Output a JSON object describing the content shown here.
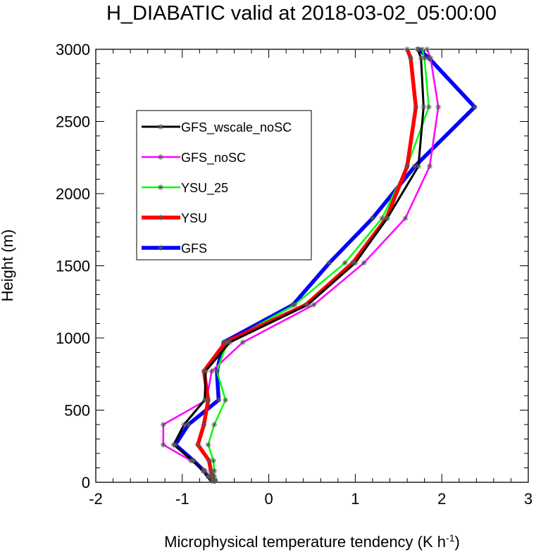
{
  "chart_data": {
    "type": "line",
    "title": "H_DIABATIC valid at 2018-03-02_05:00:00",
    "xlabel": "Microphysical temperature tendency (K h",
    "xlabel_superscript": "-1",
    "xlabel_suffix": ")",
    "ylabel": "Height (m)",
    "xlim": [
      -2,
      3
    ],
    "ylim": [
      0,
      3000
    ],
    "x_ticks": [
      -2,
      -1,
      0,
      1,
      2,
      3
    ],
    "y_ticks": [
      0,
      500,
      1000,
      1500,
      2000,
      2500,
      3000
    ],
    "x_tick_labels": [
      "-2",
      "-1",
      "0",
      "1",
      "2",
      "3"
    ],
    "y_tick_labels": [
      "0",
      "500",
      "1000",
      "1500",
      "2000",
      "2500",
      "3000"
    ],
    "grid": false,
    "legend_position": "upper-left",
    "series": [
      {
        "name": "GFS_wscale_noSC",
        "color": "#000000",
        "heights": [
          10,
          40,
          80,
          150,
          260,
          400,
          570,
          770,
          970,
          1230,
          1520,
          1830,
          2190,
          2600,
          2940,
          3000
        ],
        "values": [
          -0.66,
          -0.7,
          -0.76,
          -0.88,
          -1.1,
          -0.98,
          -0.74,
          -0.73,
          -0.45,
          0.45,
          1.0,
          1.37,
          1.73,
          1.79,
          1.76,
          1.72
        ]
      },
      {
        "name": "GFS_noSC",
        "color": "#ff00ff",
        "heights": [
          10,
          40,
          80,
          150,
          260,
          400,
          570,
          770,
          970,
          1230,
          1520,
          1830,
          2190,
          2600,
          2940,
          3000
        ],
        "values": [
          -0.62,
          -0.67,
          -0.74,
          -0.9,
          -1.22,
          -1.22,
          -0.72,
          -0.66,
          -0.3,
          0.52,
          1.1,
          1.58,
          1.86,
          1.96,
          1.87,
          1.83
        ]
      },
      {
        "name": "YSU_25",
        "color": "#00ff00",
        "heights": [
          10,
          40,
          80,
          150,
          260,
          400,
          570,
          770,
          970,
          1230,
          1520,
          1830,
          2190,
          2600,
          2940,
          3000
        ],
        "values": [
          -0.63,
          -0.63,
          -0.63,
          -0.64,
          -0.7,
          -0.63,
          -0.5,
          -0.6,
          -0.48,
          0.3,
          0.88,
          1.31,
          1.6,
          1.85,
          1.8,
          1.77
        ]
      },
      {
        "name": "YSU",
        "color": "#ff0000",
        "heights": [
          10,
          40,
          80,
          150,
          260,
          400,
          570,
          770,
          970,
          1230,
          1520,
          1830,
          2190,
          2600,
          2940,
          3000
        ],
        "values": [
          -0.64,
          -0.65,
          -0.67,
          -0.69,
          -0.82,
          -0.75,
          -0.7,
          -0.75,
          -0.5,
          0.43,
          0.97,
          1.36,
          1.6,
          1.7,
          1.64,
          1.6
        ]
      },
      {
        "name": "GFS",
        "color": "#0000ff",
        "heights": [
          10,
          40,
          80,
          150,
          260,
          400,
          570,
          770,
          970,
          1230,
          1520,
          1830,
          2190,
          2600,
          2940,
          3000
        ],
        "values": [
          -0.66,
          -0.7,
          -0.75,
          -0.87,
          -1.08,
          -0.93,
          -0.58,
          -0.6,
          -0.52,
          0.28,
          0.7,
          1.2,
          1.69,
          2.38,
          1.85,
          1.73
        ]
      }
    ]
  }
}
